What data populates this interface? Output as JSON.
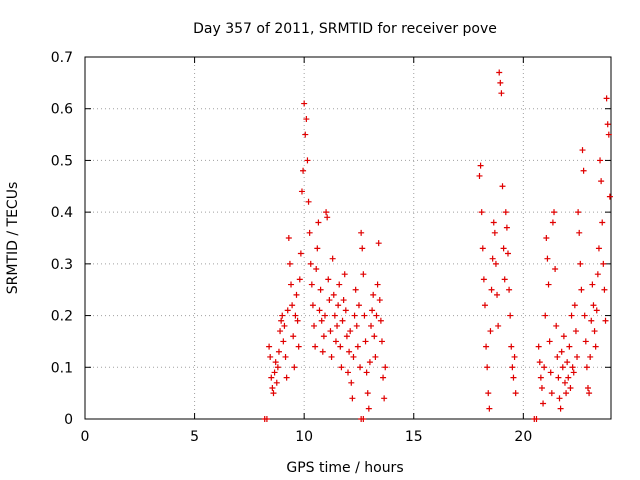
{
  "chart_data": {
    "type": "scatter",
    "title": "Day 357 of 2011, SRMTID for receiver pove",
    "xlabel": "GPS time / hours",
    "ylabel": "SRMTID / TECUs",
    "xlim": [
      0,
      24
    ],
    "ylim": [
      0,
      0.7
    ],
    "x_ticks": [
      "0",
      "5",
      "10",
      "15",
      "20"
    ],
    "y_ticks": [
      "0",
      "0.1",
      "0.2",
      "0.3",
      "0.4",
      "0.5",
      "0.6",
      "0.7"
    ],
    "grid": true,
    "legend": "none",
    "marker": "plus",
    "color": "#e00000",
    "series": [
      {
        "points": [
          [
            8.2,
            0.0
          ],
          [
            8.3,
            0.0
          ],
          [
            12.6,
            0.0
          ],
          [
            12.7,
            0.0
          ],
          [
            20.5,
            0.0
          ],
          [
            20.6,
            0.0
          ],
          [
            8.4,
            0.14
          ],
          [
            8.45,
            0.12
          ],
          [
            8.5,
            0.08
          ],
          [
            8.55,
            0.06
          ],
          [
            8.6,
            0.05
          ],
          [
            8.65,
            0.09
          ],
          [
            8.7,
            0.11
          ],
          [
            8.75,
            0.07
          ],
          [
            8.8,
            0.1
          ],
          [
            8.85,
            0.13
          ],
          [
            8.9,
            0.17
          ],
          [
            8.95,
            0.19
          ],
          [
            9.0,
            0.2
          ],
          [
            9.05,
            0.15
          ],
          [
            9.1,
            0.18
          ],
          [
            9.15,
            0.12
          ],
          [
            9.2,
            0.08
          ],
          [
            9.25,
            0.21
          ],
          [
            9.3,
            0.35
          ],
          [
            9.35,
            0.3
          ],
          [
            9.4,
            0.26
          ],
          [
            9.45,
            0.22
          ],
          [
            9.5,
            0.16
          ],
          [
            9.55,
            0.1
          ],
          [
            9.6,
            0.2
          ],
          [
            9.65,
            0.24
          ],
          [
            9.7,
            0.19
          ],
          [
            9.75,
            0.14
          ],
          [
            9.8,
            0.27
          ],
          [
            9.85,
            0.32
          ],
          [
            9.9,
            0.44
          ],
          [
            9.95,
            0.48
          ],
          [
            10.0,
            0.61
          ],
          [
            10.05,
            0.55
          ],
          [
            10.1,
            0.58
          ],
          [
            10.15,
            0.5
          ],
          [
            10.2,
            0.42
          ],
          [
            10.25,
            0.36
          ],
          [
            10.3,
            0.3
          ],
          [
            10.35,
            0.26
          ],
          [
            10.4,
            0.22
          ],
          [
            10.45,
            0.18
          ],
          [
            10.5,
            0.14
          ],
          [
            10.55,
            0.29
          ],
          [
            10.6,
            0.33
          ],
          [
            10.65,
            0.38
          ],
          [
            10.7,
            0.21
          ],
          [
            10.75,
            0.25
          ],
          [
            10.8,
            0.19
          ],
          [
            10.85,
            0.13
          ],
          [
            10.9,
            0.16
          ],
          [
            10.95,
            0.2
          ],
          [
            11.0,
            0.4
          ],
          [
            11.05,
            0.39
          ],
          [
            11.1,
            0.27
          ],
          [
            11.15,
            0.23
          ],
          [
            11.2,
            0.17
          ],
          [
            11.25,
            0.12
          ],
          [
            11.3,
            0.31
          ],
          [
            11.35,
            0.24
          ],
          [
            11.4,
            0.2
          ],
          [
            11.45,
            0.15
          ],
          [
            11.5,
            0.18
          ],
          [
            11.55,
            0.22
          ],
          [
            11.6,
            0.26
          ],
          [
            11.65,
            0.14
          ],
          [
            11.7,
            0.1
          ],
          [
            11.75,
            0.19
          ],
          [
            11.8,
            0.23
          ],
          [
            11.85,
            0.28
          ],
          [
            11.9,
            0.21
          ],
          [
            11.95,
            0.16
          ],
          [
            12.0,
            0.09
          ],
          [
            12.05,
            0.13
          ],
          [
            12.1,
            0.17
          ],
          [
            12.15,
            0.07
          ],
          [
            12.2,
            0.04
          ],
          [
            12.25,
            0.12
          ],
          [
            12.3,
            0.2
          ],
          [
            12.35,
            0.25
          ],
          [
            12.4,
            0.18
          ],
          [
            12.45,
            0.14
          ],
          [
            12.5,
            0.22
          ],
          [
            12.55,
            0.1
          ],
          [
            12.6,
            0.36
          ],
          [
            12.65,
            0.33
          ],
          [
            12.7,
            0.28
          ],
          [
            12.75,
            0.2
          ],
          [
            12.8,
            0.15
          ],
          [
            12.85,
            0.09
          ],
          [
            12.9,
            0.05
          ],
          [
            12.95,
            0.02
          ],
          [
            13.0,
            0.11
          ],
          [
            13.05,
            0.18
          ],
          [
            13.1,
            0.21
          ],
          [
            13.15,
            0.24
          ],
          [
            13.2,
            0.16
          ],
          [
            13.25,
            0.12
          ],
          [
            13.3,
            0.2
          ],
          [
            13.35,
            0.26
          ],
          [
            13.4,
            0.34
          ],
          [
            13.45,
            0.23
          ],
          [
            13.5,
            0.19
          ],
          [
            13.55,
            0.15
          ],
          [
            13.6,
            0.08
          ],
          [
            13.65,
            0.04
          ],
          [
            13.7,
            0.1
          ],
          [
            18.0,
            0.47
          ],
          [
            18.05,
            0.49
          ],
          [
            18.1,
            0.4
          ],
          [
            18.15,
            0.33
          ],
          [
            18.2,
            0.27
          ],
          [
            18.25,
            0.22
          ],
          [
            18.3,
            0.14
          ],
          [
            18.35,
            0.1
          ],
          [
            18.4,
            0.05
          ],
          [
            18.45,
            0.02
          ],
          [
            18.5,
            0.17
          ],
          [
            18.55,
            0.25
          ],
          [
            18.6,
            0.31
          ],
          [
            18.65,
            0.38
          ],
          [
            18.7,
            0.36
          ],
          [
            18.75,
            0.3
          ],
          [
            18.8,
            0.24
          ],
          [
            18.85,
            0.18
          ],
          [
            18.9,
            0.67
          ],
          [
            18.95,
            0.65
          ],
          [
            19.0,
            0.63
          ],
          [
            19.05,
            0.45
          ],
          [
            19.1,
            0.33
          ],
          [
            19.15,
            0.27
          ],
          [
            19.2,
            0.4
          ],
          [
            19.25,
            0.37
          ],
          [
            19.3,
            0.32
          ],
          [
            19.35,
            0.25
          ],
          [
            19.4,
            0.2
          ],
          [
            19.45,
            0.14
          ],
          [
            19.5,
            0.1
          ],
          [
            19.55,
            0.08
          ],
          [
            19.6,
            0.12
          ],
          [
            19.65,
            0.05
          ],
          [
            20.7,
            0.14
          ],
          [
            20.75,
            0.11
          ],
          [
            20.8,
            0.08
          ],
          [
            20.85,
            0.06
          ],
          [
            20.9,
            0.03
          ],
          [
            20.95,
            0.1
          ],
          [
            21.0,
            0.2
          ],
          [
            21.05,
            0.35
          ],
          [
            21.1,
            0.31
          ],
          [
            21.15,
            0.26
          ],
          [
            21.2,
            0.15
          ],
          [
            21.25,
            0.09
          ],
          [
            21.3,
            0.05
          ],
          [
            21.35,
            0.38
          ],
          [
            21.4,
            0.4
          ],
          [
            21.45,
            0.29
          ],
          [
            21.5,
            0.18
          ],
          [
            21.55,
            0.12
          ],
          [
            21.6,
            0.08
          ],
          [
            21.65,
            0.04
          ],
          [
            21.7,
            0.02
          ],
          [
            21.75,
            0.13
          ],
          [
            21.8,
            0.1
          ],
          [
            21.85,
            0.16
          ],
          [
            21.9,
            0.07
          ],
          [
            21.95,
            0.05
          ],
          [
            22.0,
            0.11
          ],
          [
            22.05,
            0.08
          ],
          [
            22.1,
            0.14
          ],
          [
            22.15,
            0.06
          ],
          [
            22.2,
            0.2
          ],
          [
            22.25,
            0.1
          ],
          [
            22.3,
            0.09
          ],
          [
            22.35,
            0.22
          ],
          [
            22.4,
            0.17
          ],
          [
            22.45,
            0.12
          ],
          [
            22.5,
            0.4
          ],
          [
            22.55,
            0.36
          ],
          [
            22.6,
            0.3
          ],
          [
            22.65,
            0.25
          ],
          [
            22.7,
            0.52
          ],
          [
            22.75,
            0.48
          ],
          [
            22.8,
            0.2
          ],
          [
            22.85,
            0.15
          ],
          [
            22.9,
            0.1
          ],
          [
            22.95,
            0.06
          ],
          [
            23.0,
            0.05
          ],
          [
            23.05,
            0.12
          ],
          [
            23.1,
            0.19
          ],
          [
            23.15,
            0.26
          ],
          [
            23.2,
            0.22
          ],
          [
            23.25,
            0.17
          ],
          [
            23.3,
            0.14
          ],
          [
            23.35,
            0.21
          ],
          [
            23.4,
            0.28
          ],
          [
            23.45,
            0.33
          ],
          [
            23.5,
            0.5
          ],
          [
            23.55,
            0.46
          ],
          [
            23.6,
            0.38
          ],
          [
            23.65,
            0.3
          ],
          [
            23.7,
            0.25
          ],
          [
            23.75,
            0.19
          ],
          [
            23.8,
            0.62
          ],
          [
            23.85,
            0.57
          ],
          [
            23.9,
            0.55
          ],
          [
            23.95,
            0.43
          ]
        ]
      }
    ]
  }
}
